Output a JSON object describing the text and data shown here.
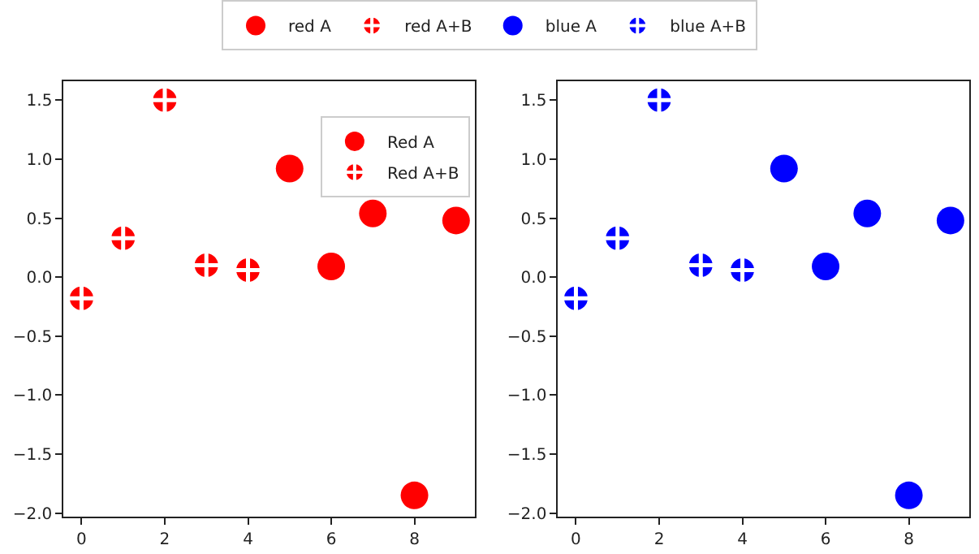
{
  "chart_data": [
    {
      "type": "scatter",
      "legend": "top right",
      "grid": false,
      "xlim": [
        -0.43,
        9.45
      ],
      "ylim": [
        -2.03,
        1.66
      ],
      "xticks": [
        0,
        2,
        4,
        6,
        8
      ],
      "yticks": [
        {
          "value": -2.0,
          "label": "−2.0"
        },
        {
          "value": -1.5,
          "label": "−1.5"
        },
        {
          "value": -1.0,
          "label": "−1.0"
        },
        {
          "value": -0.5,
          "label": "−0.5"
        },
        {
          "value": 0.0,
          "label": "0.0"
        },
        {
          "value": 0.5,
          "label": "0.5"
        },
        {
          "value": 1.0,
          "label": "1.0"
        },
        {
          "value": 1.5,
          "label": "1.5"
        }
      ],
      "annotations": [
        "red A",
        "red A+B"
      ],
      "series": [
        {
          "name": "Red A",
          "color": "#ff0000",
          "marker": "circle",
          "x": [
            5,
            6,
            7,
            8,
            9
          ],
          "values": [
            0.92,
            0.09,
            0.54,
            -1.85,
            0.48
          ]
        },
        {
          "name": "Red A+B",
          "color": "#ff0000",
          "marker": "cross",
          "x": [
            0,
            1,
            2,
            3,
            4
          ],
          "values": [
            -0.18,
            0.33,
            1.5,
            0.1,
            0.06
          ]
        }
      ]
    },
    {
      "type": "scatter",
      "legend": "top",
      "grid": false,
      "xlim": [
        -0.43,
        9.45
      ],
      "ylim": [
        -2.03,
        1.66
      ],
      "xticks": [
        0,
        2,
        4,
        6,
        8
      ],
      "yticks": [
        {
          "value": -2.0,
          "label": "−2.0"
        },
        {
          "value": -1.5,
          "label": "−1.5"
        },
        {
          "value": -1.0,
          "label": "−1.0"
        },
        {
          "value": -0.5,
          "label": "−0.5"
        },
        {
          "value": 0.0,
          "label": "0.0"
        },
        {
          "value": 0.5,
          "label": "0.5"
        },
        {
          "value": 1.0,
          "label": "1.0"
        },
        {
          "value": 1.5,
          "label": "1.5"
        }
      ],
      "series": [
        {
          "name": "blue A",
          "color": "#0000ff",
          "marker": "circle",
          "x": [
            5,
            6,
            7,
            8,
            9
          ],
          "values": [
            0.92,
            0.09,
            0.54,
            -1.85,
            0.48
          ]
        },
        {
          "name": "blue A+B",
          "color": "#0000ff",
          "marker": "cross",
          "x": [
            0,
            1,
            2,
            3,
            4
          ],
          "values": [
            -0.18,
            0.33,
            1.5,
            0.1,
            0.06
          ]
        }
      ]
    }
  ]
}
